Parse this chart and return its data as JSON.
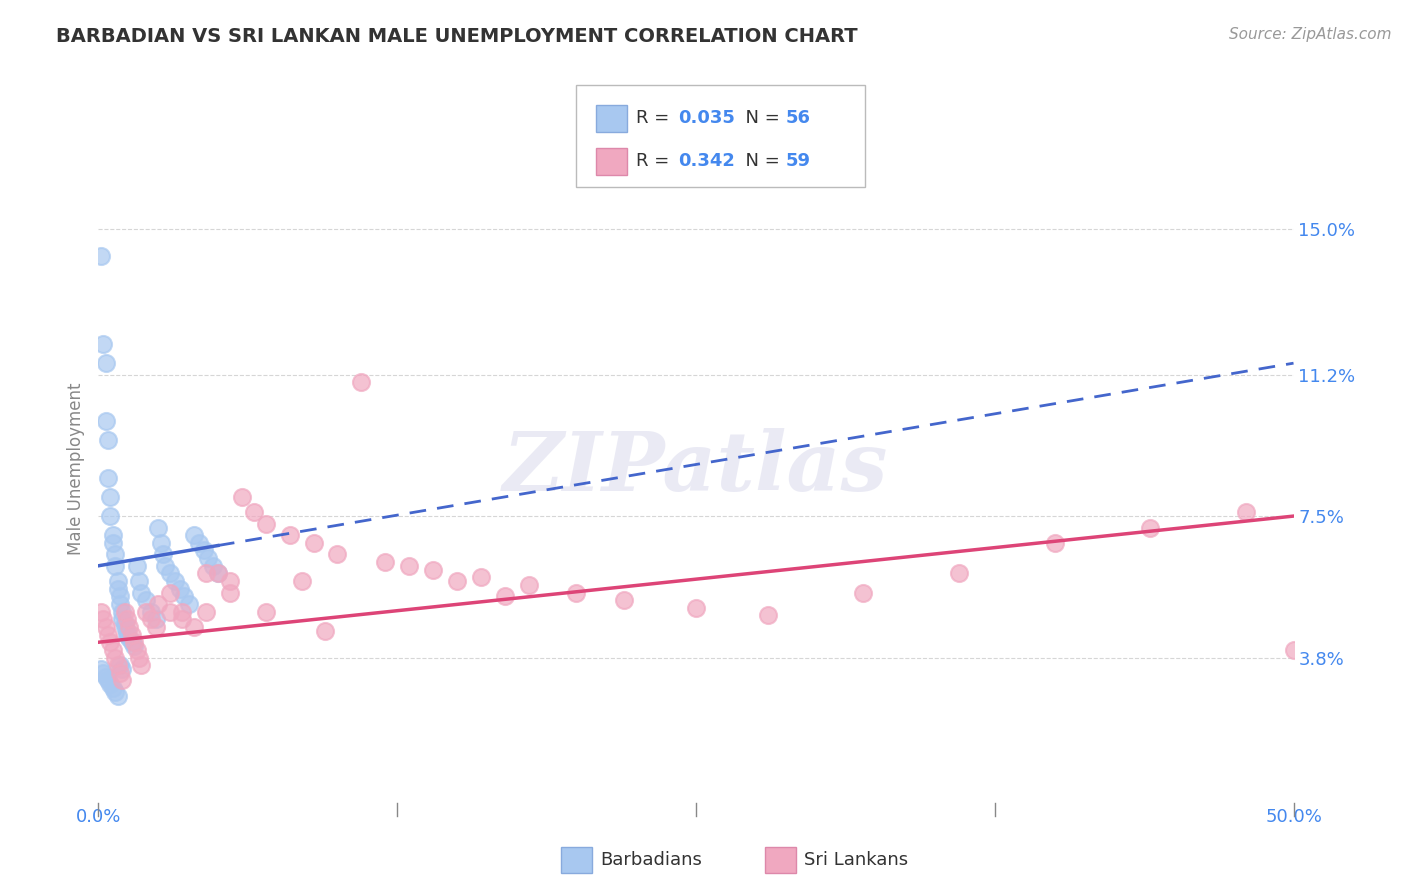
{
  "title": "BARBADIAN VS SRI LANKAN MALE UNEMPLOYMENT CORRELATION CHART",
  "source": "Source: ZipAtlas.com",
  "ylabel": "Male Unemployment",
  "xlim": [
    0.0,
    0.5
  ],
  "ylim": [
    0.0,
    0.175
  ],
  "yticks": [
    0.038,
    0.075,
    0.112,
    0.15
  ],
  "ytick_labels": [
    "3.8%",
    "7.5%",
    "11.2%",
    "15.0%"
  ],
  "barbadian_color": "#a8c8f0",
  "srilanka_color": "#f0a8c0",
  "trend_blue": "#4466cc",
  "trend_pink": "#dd4477",
  "background_color": "#ffffff",
  "grid_color": "#cccccc",
  "label_color": "#4488ee",
  "watermark": "ZIPatlas",
  "barbadian_x": [
    0.001,
    0.002,
    0.003,
    0.003,
    0.004,
    0.004,
    0.005,
    0.005,
    0.006,
    0.006,
    0.007,
    0.007,
    0.008,
    0.008,
    0.009,
    0.009,
    0.01,
    0.01,
    0.011,
    0.011,
    0.012,
    0.012,
    0.013,
    0.014,
    0.015,
    0.016,
    0.017,
    0.018,
    0.02,
    0.022,
    0.024,
    0.025,
    0.026,
    0.027,
    0.028,
    0.03,
    0.032,
    0.034,
    0.036,
    0.038,
    0.04,
    0.042,
    0.044,
    0.046,
    0.048,
    0.05,
    0.001,
    0.002,
    0.003,
    0.004,
    0.005,
    0.006,
    0.007,
    0.008,
    0.009,
    0.01
  ],
  "barbadian_y": [
    0.143,
    0.12,
    0.115,
    0.1,
    0.095,
    0.085,
    0.08,
    0.075,
    0.07,
    0.068,
    0.065,
    0.062,
    0.058,
    0.056,
    0.054,
    0.052,
    0.05,
    0.048,
    0.047,
    0.046,
    0.045,
    0.044,
    0.043,
    0.042,
    0.041,
    0.062,
    0.058,
    0.055,
    0.053,
    0.05,
    0.048,
    0.072,
    0.068,
    0.065,
    0.062,
    0.06,
    0.058,
    0.056,
    0.054,
    0.052,
    0.07,
    0.068,
    0.066,
    0.064,
    0.062,
    0.06,
    0.035,
    0.034,
    0.033,
    0.032,
    0.031,
    0.03,
    0.029,
    0.028,
    0.036,
    0.035
  ],
  "srilanka_x": [
    0.001,
    0.002,
    0.003,
    0.004,
    0.005,
    0.006,
    0.007,
    0.008,
    0.009,
    0.01,
    0.011,
    0.012,
    0.013,
    0.014,
    0.015,
    0.016,
    0.017,
    0.018,
    0.02,
    0.022,
    0.024,
    0.03,
    0.035,
    0.04,
    0.045,
    0.05,
    0.055,
    0.06,
    0.065,
    0.07,
    0.08,
    0.09,
    0.1,
    0.12,
    0.14,
    0.16,
    0.18,
    0.2,
    0.22,
    0.25,
    0.28,
    0.32,
    0.36,
    0.4,
    0.44,
    0.48,
    0.5,
    0.025,
    0.03,
    0.035,
    0.045,
    0.055,
    0.07,
    0.085,
    0.095,
    0.11,
    0.13,
    0.15,
    0.17
  ],
  "srilanka_y": [
    0.05,
    0.048,
    0.046,
    0.044,
    0.042,
    0.04,
    0.038,
    0.036,
    0.034,
    0.032,
    0.05,
    0.048,
    0.046,
    0.044,
    0.042,
    0.04,
    0.038,
    0.036,
    0.05,
    0.048,
    0.046,
    0.05,
    0.048,
    0.046,
    0.05,
    0.06,
    0.058,
    0.08,
    0.076,
    0.073,
    0.07,
    0.068,
    0.065,
    0.063,
    0.061,
    0.059,
    0.057,
    0.055,
    0.053,
    0.051,
    0.049,
    0.055,
    0.06,
    0.068,
    0.072,
    0.076,
    0.04,
    0.052,
    0.055,
    0.05,
    0.06,
    0.055,
    0.05,
    0.058,
    0.045,
    0.11,
    0.062,
    0.058,
    0.054
  ],
  "barb_trend_x0": 0.0,
  "barb_trend_x1": 0.5,
  "barb_trend_y0": 0.062,
  "barb_trend_y1": 0.115,
  "sri_trend_x0": 0.0,
  "sri_trend_x1": 0.5,
  "sri_trend_y0": 0.042,
  "sri_trend_y1": 0.075
}
